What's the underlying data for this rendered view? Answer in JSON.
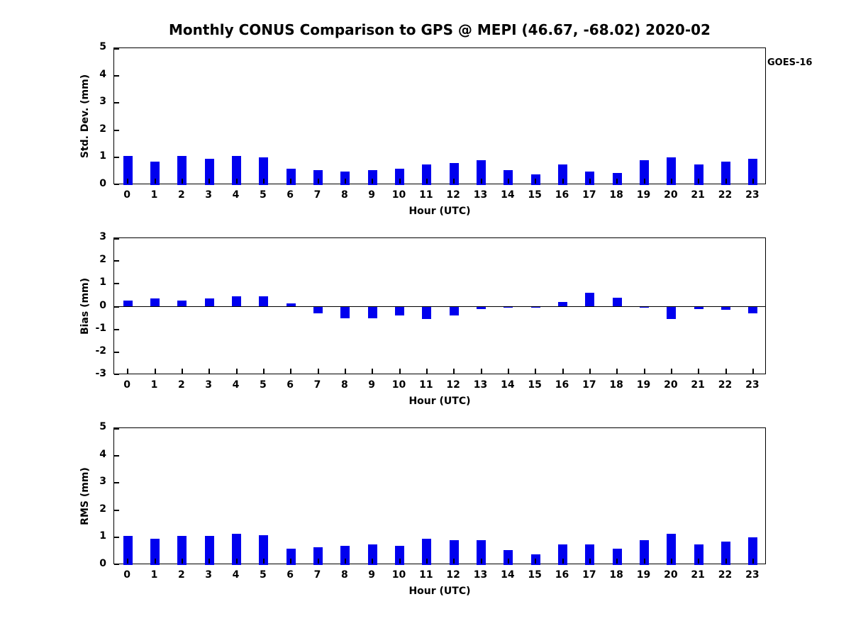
{
  "title": "Monthly CONUS Comparison to GPS @ MEPI (46.67, -68.02) 2020-02",
  "legend": {
    "label": "GOES-16",
    "color": "#0000EE",
    "position": "top-right"
  },
  "chart_data": [
    {
      "type": "bar",
      "series_name": "GOES-16",
      "bar_color": "#0000EE",
      "ylabel": "Std. Dev. (mm)",
      "xlabel": "Hour (UTC)",
      "ylim": [
        0,
        5
      ],
      "yticks": [
        0,
        1,
        2,
        3,
        4,
        5
      ],
      "grid": false,
      "categories": [
        "0",
        "1",
        "2",
        "3",
        "4",
        "5",
        "6",
        "7",
        "8",
        "9",
        "10",
        "11",
        "12",
        "13",
        "14",
        "15",
        "16",
        "17",
        "18",
        "19",
        "20",
        "21",
        "22",
        "23"
      ],
      "values": [
        1.05,
        0.85,
        1.05,
        0.95,
        1.05,
        1.0,
        0.6,
        0.55,
        0.5,
        0.55,
        0.6,
        0.75,
        0.8,
        0.9,
        0.55,
        0.4,
        0.75,
        0.5,
        0.45,
        0.9,
        1.0,
        0.75,
        0.85,
        0.95
      ]
    },
    {
      "type": "bar",
      "series_name": "GOES-16",
      "bar_color": "#0000EE",
      "ylabel": "Bias (mm)",
      "xlabel": "Hour (UTC)",
      "ylim": [
        -3,
        3
      ],
      "yticks": [
        -3,
        -2,
        -1,
        0,
        1,
        2,
        3
      ],
      "grid": false,
      "zero_line": true,
      "categories": [
        "0",
        "1",
        "2",
        "3",
        "4",
        "5",
        "6",
        "7",
        "8",
        "9",
        "10",
        "11",
        "12",
        "13",
        "14",
        "15",
        "16",
        "17",
        "18",
        "19",
        "20",
        "21",
        "22",
        "23"
      ],
      "values": [
        0.25,
        0.35,
        0.25,
        0.35,
        0.45,
        0.45,
        0.15,
        -0.3,
        -0.5,
        -0.5,
        -0.4,
        -0.55,
        -0.4,
        -0.1,
        -0.02,
        -0.05,
        0.2,
        0.6,
        0.4,
        -0.05,
        -0.55,
        -0.1,
        -0.15,
        -0.3
      ]
    },
    {
      "type": "bar",
      "series_name": "GOES-16",
      "bar_color": "#0000EE",
      "ylabel": "RMS (mm)",
      "xlabel": "Hour (UTC)",
      "ylim": [
        0,
        5
      ],
      "yticks": [
        0,
        1,
        2,
        3,
        4,
        5
      ],
      "grid": false,
      "categories": [
        "0",
        "1",
        "2",
        "3",
        "4",
        "5",
        "6",
        "7",
        "8",
        "9",
        "10",
        "11",
        "12",
        "13",
        "14",
        "15",
        "16",
        "17",
        "18",
        "19",
        "20",
        "21",
        "22",
        "23"
      ],
      "values": [
        1.05,
        0.95,
        1.05,
        1.05,
        1.15,
        1.1,
        0.6,
        0.65,
        0.7,
        0.75,
        0.7,
        0.95,
        0.9,
        0.9,
        0.55,
        0.4,
        0.75,
        0.75,
        0.6,
        0.9,
        1.15,
        0.75,
        0.85,
        1.0
      ]
    }
  ]
}
